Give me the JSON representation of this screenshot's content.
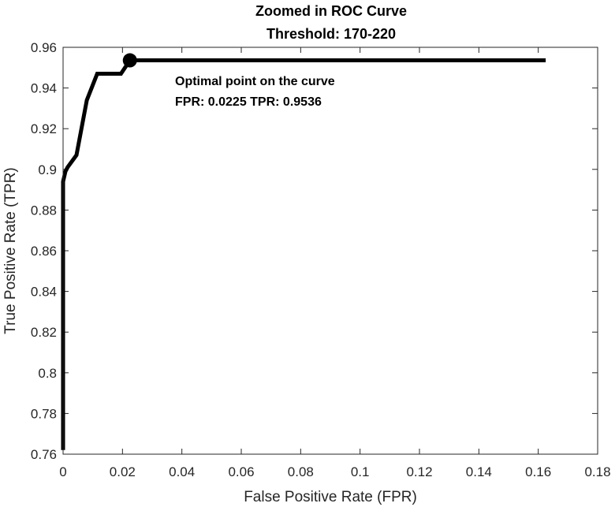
{
  "chart_data": {
    "type": "line",
    "title": "Zoomed in ROC Curve",
    "subtitle": "Threshold: 170-220",
    "xlabel": "False Positive Rate (FPR)",
    "ylabel": "True Positive Rate (TPR)",
    "xlim": [
      0,
      0.18
    ],
    "ylim": [
      0.76,
      0.96
    ],
    "xticks": [
      0,
      0.02,
      0.04,
      0.06,
      0.08,
      0.1,
      0.12,
      0.14,
      0.16,
      0.18
    ],
    "xtick_labels": [
      "0",
      "0.02",
      "0.04",
      "0.06",
      "0.08",
      "0.1",
      "0.12",
      "0.14",
      "0.16",
      "0.18"
    ],
    "yticks": [
      0.76,
      0.78,
      0.8,
      0.82,
      0.84,
      0.86,
      0.88,
      0.9,
      0.92,
      0.94,
      0.96
    ],
    "ytick_labels": [
      "0.76",
      "0.78",
      "0.8",
      "0.82",
      "0.84",
      "0.86",
      "0.88",
      "0.9",
      "0.92",
      "0.94",
      "0.96"
    ],
    "grid": false,
    "line_color": "#000000",
    "series": [
      {
        "x": [
          0,
          0,
          0.0008,
          0.0015,
          0.0045,
          0.008,
          0.0115,
          0.0195,
          0.0225,
          0.1625
        ],
        "y": [
          0.762,
          0.894,
          0.899,
          0.901,
          0.907,
          0.934,
          0.947,
          0.947,
          0.9536,
          0.9536
        ]
      }
    ],
    "optimal_point": {
      "x": 0.0225,
      "y": 0.9536
    },
    "annotation": {
      "line1": "Optimal point on the curve",
      "line2": "FPR: 0.0225 TPR: 0.9536"
    }
  }
}
